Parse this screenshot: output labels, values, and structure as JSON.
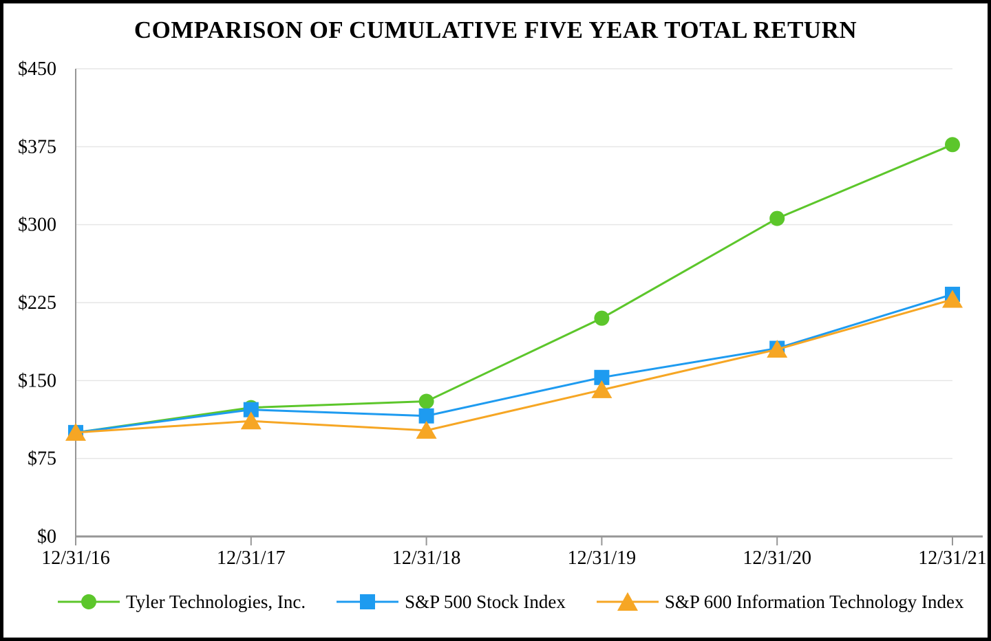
{
  "page": {
    "title": "COMPARISON OF CUMULATIVE FIVE YEAR TOTAL RETURN"
  },
  "chart_data": {
    "type": "line",
    "title": "COMPARISON OF CUMULATIVE FIVE YEAR TOTAL RETURN",
    "categories": [
      "12/31/16",
      "12/31/17",
      "12/31/18",
      "12/31/19",
      "12/31/20",
      "12/31/21"
    ],
    "series": [
      {
        "name": "Tyler Technologies, Inc.",
        "marker": "circle",
        "color": "#5CC62B",
        "values": [
          100,
          124,
          130,
          210,
          306,
          377
        ]
      },
      {
        "name": "S&P 500 Stock Index",
        "marker": "square",
        "color": "#1E9BF0",
        "values": [
          100,
          122,
          116,
          153,
          181,
          233
        ]
      },
      {
        "name": "S&P 600 Information Technology Index",
        "marker": "triangle",
        "color": "#F6A624",
        "values": [
          100,
          111,
          102,
          141,
          180,
          228
        ]
      }
    ],
    "ylim": [
      0,
      450
    ],
    "ytick_step": 75,
    "ytick_prefix": "$",
    "grid": true,
    "legend_position": "bottom",
    "axis_color": "#969696",
    "grid_color": "#e6e6e6"
  }
}
